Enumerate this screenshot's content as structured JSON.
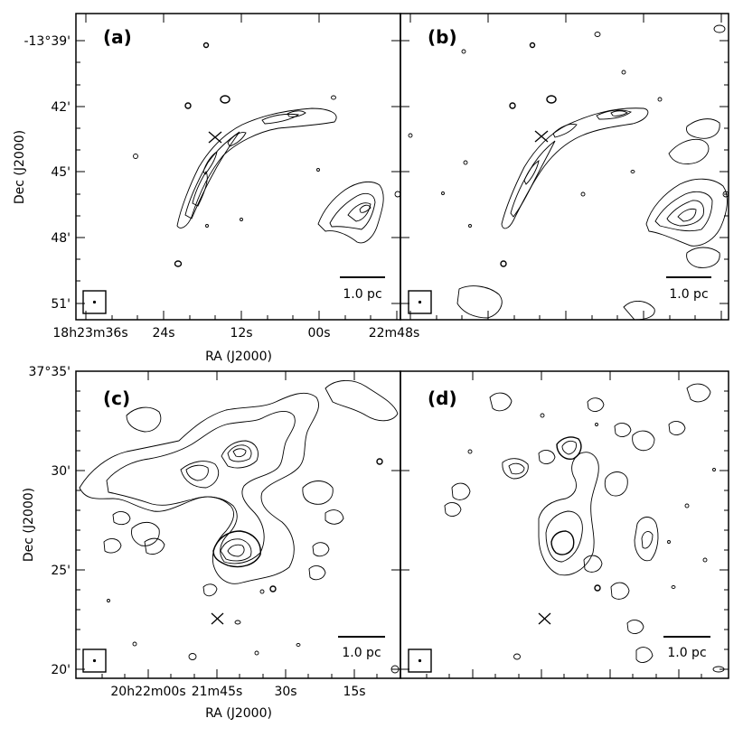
{
  "figure": {
    "top": {
      "ylabel": "Dec (J2000)",
      "xlabel": "RA (J2000)",
      "yticks": [
        "-13°39'",
        "42'",
        "45'",
        "48'",
        "51'"
      ],
      "xticks": [
        "18h23m36s",
        "24s",
        "12s",
        "00s",
        "22m48s"
      ],
      "panels": [
        {
          "label": "(a)",
          "scalebar": "1.0 pc"
        },
        {
          "label": "(b)",
          "scalebar": "1.0 pc"
        }
      ]
    },
    "bottom": {
      "ylabel": "Dec (J2000)",
      "xlabel": "RA (J2000)",
      "yticks": [
        "37°35'",
        "30'",
        "25'",
        "20'"
      ],
      "xticks": [
        "20h22m00s",
        "21m45s",
        "30s",
        "15s"
      ],
      "panels": [
        {
          "label": "(c)",
          "scalebar": "1.0 pc"
        },
        {
          "label": "(d)",
          "scalebar": "1.0 pc"
        }
      ]
    }
  },
  "chart_data": [
    {
      "type": "other",
      "panel": "(a)",
      "ylabel": "Dec (J2000)",
      "xlabel": "RA (J2000)",
      "yticks": [
        "-13°39'",
        "42'",
        "45'",
        "48'",
        "51'"
      ],
      "xticks": [
        "18h23m36s",
        "24s",
        "12s",
        "00s",
        "22m48s"
      ],
      "scalebar": "1.0 pc"
    },
    {
      "type": "other",
      "panel": "(b)",
      "scalebar": "1.0 pc"
    },
    {
      "type": "other",
      "panel": "(c)",
      "ylabel": "Dec (J2000)",
      "xlabel": "RA (J2000)",
      "yticks": [
        "37°35'",
        "30'",
        "25'",
        "20'"
      ],
      "xticks": [
        "20h22m00s",
        "21m45s",
        "30s",
        "15s"
      ],
      "scalebar": "1.0 pc"
    },
    {
      "type": "other",
      "panel": "(d)",
      "scalebar": "1.0 pc"
    }
  ]
}
